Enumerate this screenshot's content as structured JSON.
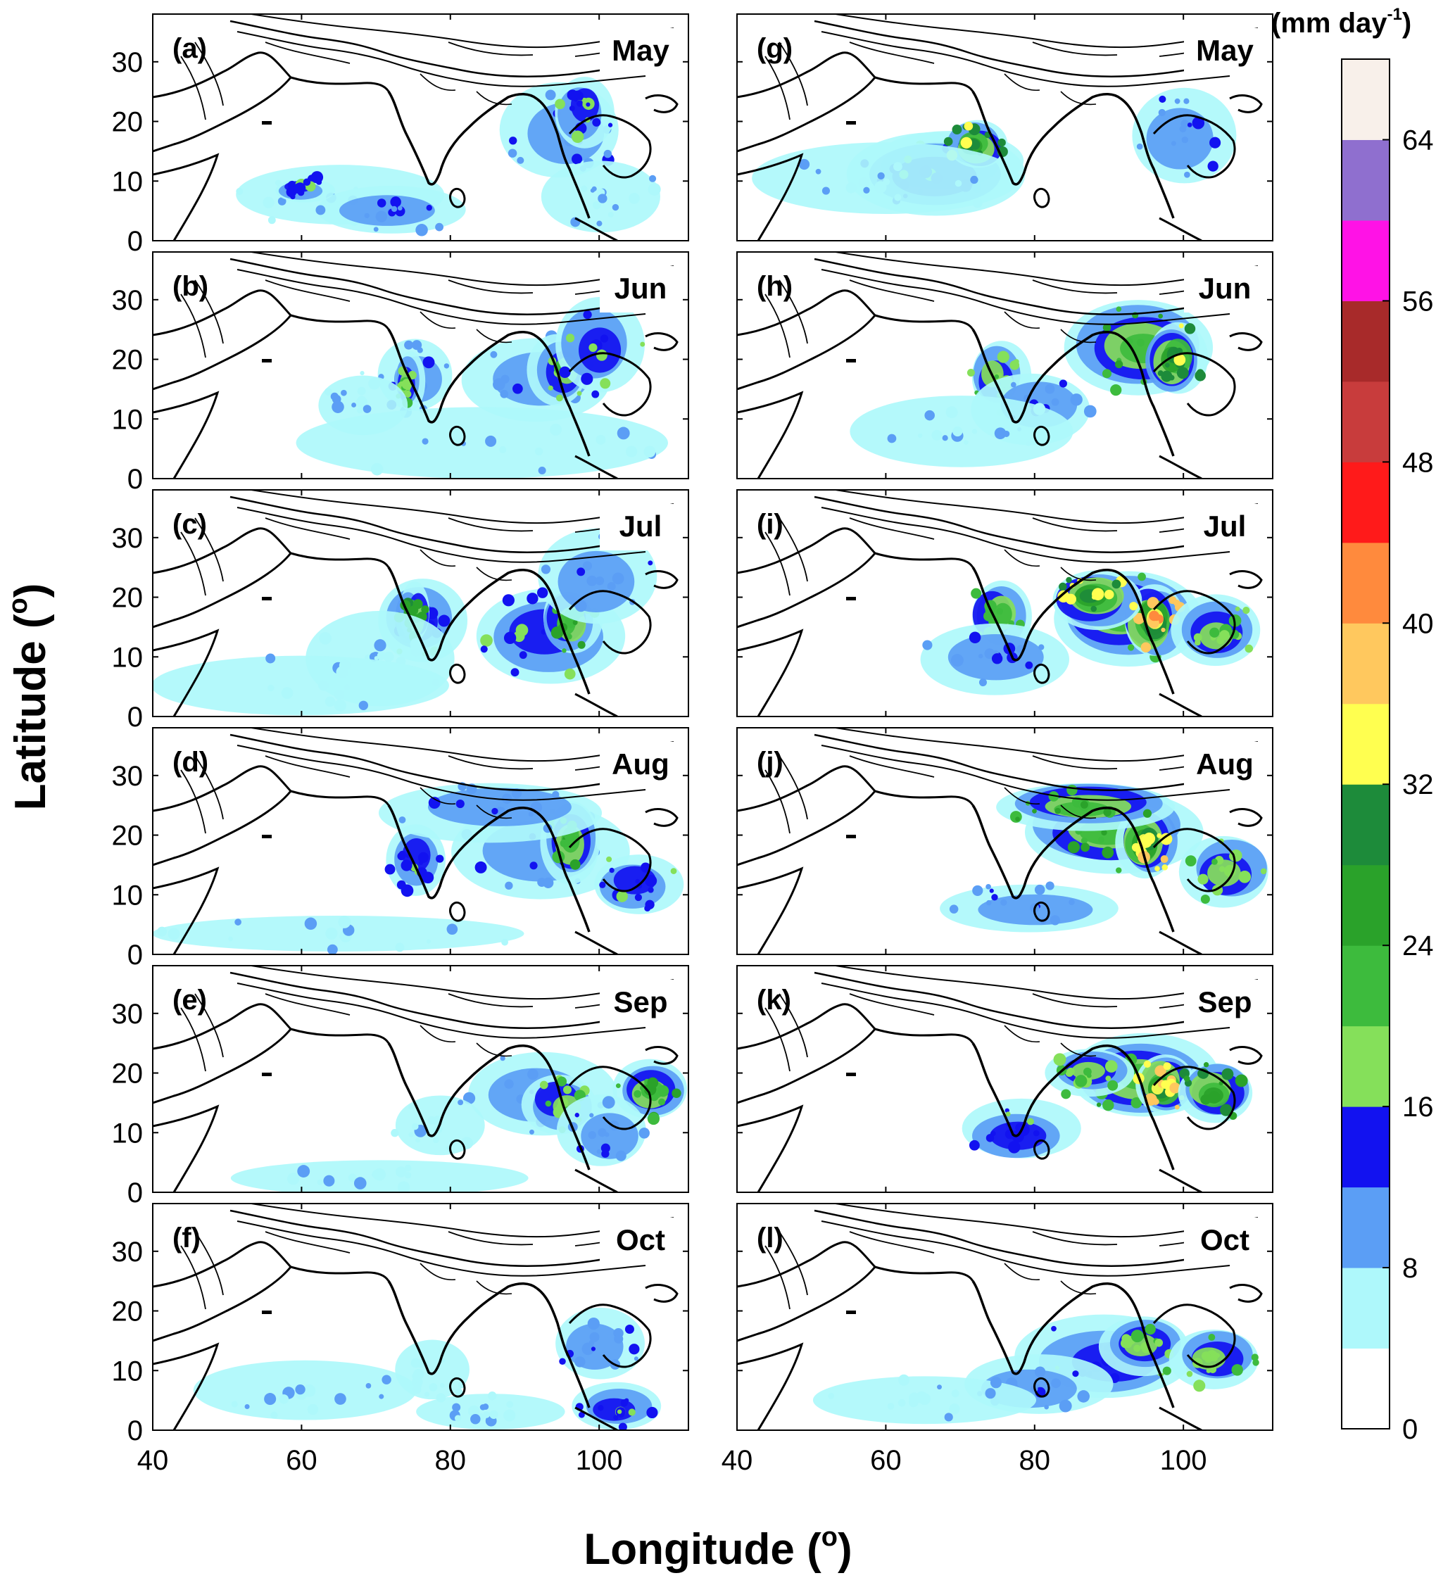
{
  "figure": {
    "ylabel": "Latitude (",
    "ylabel_sup": "o",
    "ylabel_close": ")",
    "xlabel": "Longitude (",
    "xlabel_sup": "o",
    "xlabel_close": ")",
    "panels": [
      {
        "tag": "(a)",
        "month": "May"
      },
      {
        "tag": "(b)",
        "month": "Jun"
      },
      {
        "tag": "(c)",
        "month": "Jul"
      },
      {
        "tag": "(d)",
        "month": "Aug"
      },
      {
        "tag": "(e)",
        "month": "Sep"
      },
      {
        "tag": "(f)",
        "month": "Oct"
      },
      {
        "tag": "(g)",
        "month": "May"
      },
      {
        "tag": "(h)",
        "month": "Jun"
      },
      {
        "tag": "(i)",
        "month": "Jul"
      },
      {
        "tag": "(j)",
        "month": "Aug"
      },
      {
        "tag": "(k)",
        "month": "Sep"
      },
      {
        "tag": "(l)",
        "month": "Oct"
      }
    ],
    "lat_ticks": [
      "30",
      "20",
      "10",
      "0"
    ],
    "lon_ticks": [
      "40",
      "60",
      "80",
      "100"
    ],
    "colorbar": {
      "unit_main": "(mm day",
      "unit_sup": "-1",
      "unit_close": ")",
      "tick_labels": [
        "0",
        "8",
        "16",
        "24",
        "32",
        "40",
        "48",
        "56",
        "64"
      ],
      "colors": [
        "#ffffff",
        "#aef8fb",
        "#5b9ef5",
        "#1212f0",
        "#85e05a",
        "#3dbb3d",
        "#2aa22a",
        "#1d8b3a",
        "#ffff50",
        "#ffc85e",
        "#ff8a3d",
        "#ff1a1a",
        "#c83c3c",
        "#a82a2a",
        "#ff12e6",
        "#8f6fcf",
        "#f8f0ea"
      ]
    }
  },
  "chart_data": {
    "type": "heatmap",
    "xlabel": "Longitude (o)",
    "ylabel": "Latitude (o)",
    "xlim": [
      40,
      112
    ],
    "ylim": [
      0,
      38
    ],
    "x_ticks": [
      40,
      60,
      80,
      100
    ],
    "y_ticks": [
      0,
      10,
      20,
      30
    ],
    "colorbar": {
      "label": "(mm day-1)",
      "range": [
        0,
        68
      ],
      "ticks": [
        0,
        8,
        16,
        24,
        32,
        40,
        48,
        56,
        64
      ]
    },
    "panels": [
      {
        "tag": "(a)",
        "month": "May"
      },
      {
        "tag": "(b)",
        "month": "Jun"
      },
      {
        "tag": "(c)",
        "month": "Jul"
      },
      {
        "tag": "(d)",
        "month": "Aug"
      },
      {
        "tag": "(e)",
        "month": "Sep"
      },
      {
        "tag": "(f)",
        "month": "Oct"
      },
      {
        "tag": "(g)",
        "month": "May"
      },
      {
        "tag": "(h)",
        "month": "Jun"
      },
      {
        "tag": "(i)",
        "month": "Jul"
      },
      {
        "tag": "(j)",
        "month": "Aug"
      },
      {
        "tag": "(k)",
        "month": "Sep"
      },
      {
        "tag": "(l)",
        "month": "Oct"
      }
    ]
  }
}
